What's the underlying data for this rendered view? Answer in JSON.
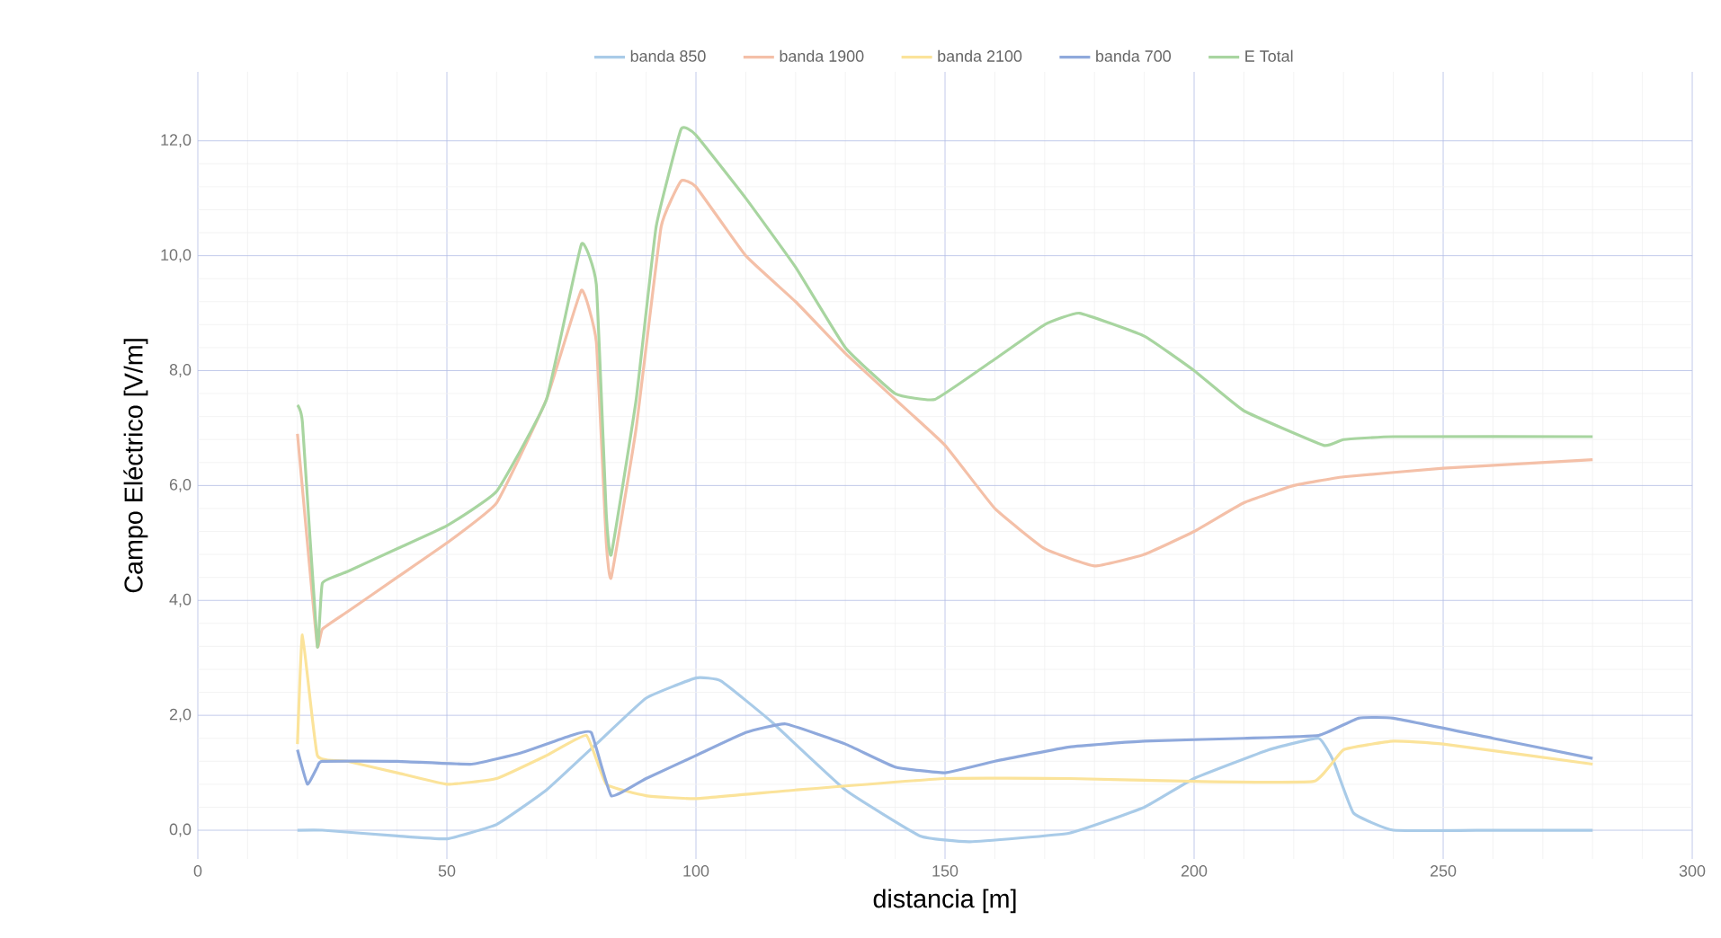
{
  "chart_data": {
    "type": "line",
    "xlabel": "distancia [m]",
    "ylabel": "Campo Eléctrico [V/m]",
    "xlim": [
      0,
      300
    ],
    "xticks": [
      0,
      50,
      100,
      150,
      200,
      250,
      300
    ],
    "ylim": [
      -0.5,
      13.2
    ],
    "yticks": [
      {
        "value": 0,
        "label": "0,0"
      },
      {
        "value": 2,
        "label": "2,0"
      },
      {
        "value": 4,
        "label": "4,0"
      },
      {
        "value": 6,
        "label": "6,0"
      },
      {
        "value": 8,
        "label": "8,0"
      },
      {
        "value": 10,
        "label": "10,0"
      },
      {
        "value": 12,
        "label": "12,0"
      }
    ],
    "grid": true,
    "legend": "top",
    "marker": "none",
    "line_style": "solid",
    "series": [
      {
        "name": "banda 850",
        "color": "#a9cbe8",
        "x": [
          20,
          25,
          40,
          50,
          60,
          70,
          80,
          90,
          100,
          105,
          115,
          130,
          145,
          155,
          175,
          190,
          200,
          215,
          225,
          228,
          232,
          240,
          260,
          280
        ],
        "values": [
          0.0,
          0.0,
          -0.1,
          -0.15,
          0.1,
          0.7,
          1.5,
          2.3,
          2.65,
          2.6,
          1.9,
          0.7,
          -0.1,
          -0.2,
          -0.05,
          0.4,
          0.9,
          1.4,
          1.6,
          1.2,
          0.3,
          0.0,
          0.0,
          0.0
        ]
      },
      {
        "name": "banda 1900",
        "color": "#f4c0a8",
        "x": [
          20,
          22,
          24,
          25,
          30,
          40,
          50,
          60,
          70,
          77,
          80,
          82,
          83,
          88,
          93,
          97,
          100,
          110,
          120,
          130,
          140,
          150,
          160,
          170,
          180,
          190,
          200,
          210,
          220,
          230,
          250,
          280
        ],
        "values": [
          6.9,
          5.0,
          3.2,
          3.5,
          3.8,
          4.4,
          5.0,
          5.7,
          7.5,
          9.4,
          8.5,
          5.0,
          4.4,
          7.0,
          10.5,
          11.3,
          11.2,
          10.0,
          9.2,
          8.3,
          7.5,
          6.7,
          5.6,
          4.9,
          4.6,
          4.8,
          5.2,
          5.7,
          6.0,
          6.15,
          6.3,
          6.45
        ]
      },
      {
        "name": "banda 2100",
        "color": "#fbe39a",
        "x": [
          20,
          21,
          24,
          30,
          40,
          50,
          60,
          70,
          78,
          82,
          90,
          100,
          120,
          150,
          175,
          200,
          224,
          230,
          240,
          250,
          280
        ],
        "values": [
          1.5,
          3.4,
          1.3,
          1.2,
          1.0,
          0.8,
          0.9,
          1.3,
          1.65,
          0.8,
          0.6,
          0.55,
          0.7,
          0.9,
          0.9,
          0.85,
          0.85,
          1.4,
          1.55,
          1.5,
          1.15
        ]
      },
      {
        "name": "banda 700",
        "color": "#8fa9dc",
        "x": [
          20,
          22,
          24,
          25,
          40,
          55,
          65,
          75,
          79,
          83,
          90,
          100,
          110,
          118,
          130,
          140,
          150,
          160,
          175,
          190,
          210,
          225,
          233,
          240,
          260,
          280
        ],
        "values": [
          1.4,
          0.8,
          1.1,
          1.2,
          1.2,
          1.15,
          1.35,
          1.65,
          1.7,
          0.6,
          0.9,
          1.3,
          1.7,
          1.85,
          1.5,
          1.1,
          1.0,
          1.2,
          1.45,
          1.55,
          1.6,
          1.65,
          1.95,
          1.95,
          1.6,
          1.25
        ]
      },
      {
        "name": "E Total",
        "color": "#a8d5a0",
        "x": [
          20,
          21,
          24,
          25,
          30,
          40,
          50,
          60,
          70,
          77,
          80,
          82,
          83,
          88,
          92,
          97,
          100,
          110,
          120,
          130,
          140,
          148,
          160,
          170,
          177,
          190,
          200,
          210,
          226,
          230,
          240,
          280
        ],
        "values": [
          7.4,
          7.1,
          3.2,
          4.3,
          4.5,
          4.9,
          5.3,
          5.9,
          7.5,
          10.2,
          9.5,
          5.5,
          4.8,
          7.5,
          10.5,
          12.2,
          12.1,
          11.0,
          9.8,
          8.4,
          7.6,
          7.5,
          8.2,
          8.8,
          9.0,
          8.6,
          8.0,
          7.3,
          6.7,
          6.8,
          6.85,
          6.85
        ]
      }
    ]
  }
}
